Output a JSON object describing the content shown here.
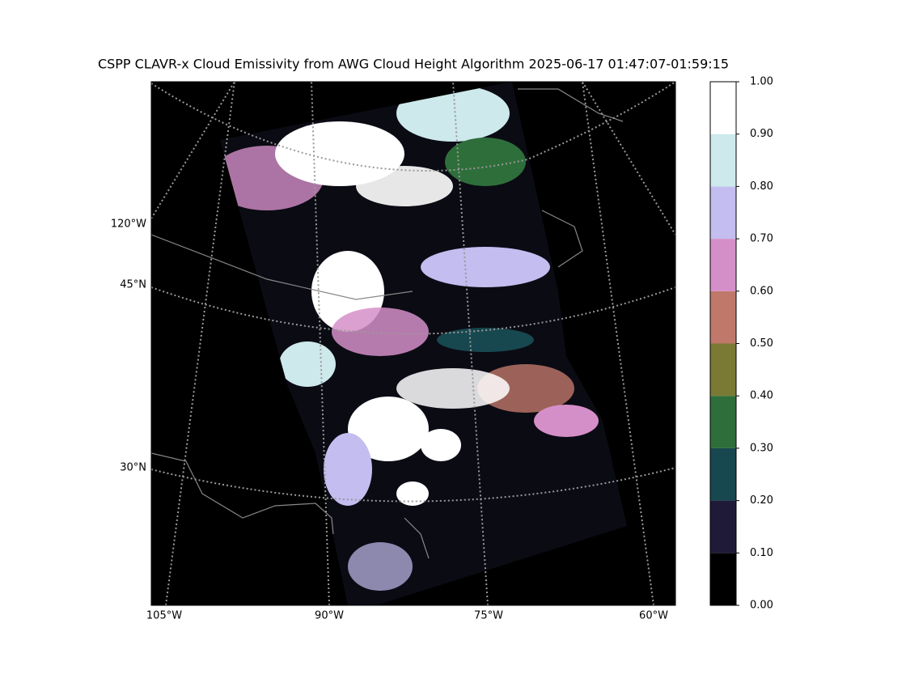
{
  "title": "CSPP CLAVR-x Cloud Emissivity from AWG Cloud Height Algorithm 2025-06-17 01:47:07-01:59:15",
  "map": {
    "lat_labels": [
      "120°W",
      "45°N",
      "30°N"
    ],
    "lon_labels": [
      "105°W",
      "90°W",
      "75°W",
      "60°W"
    ]
  },
  "colorbar": {
    "ticks": [
      {
        "value": 0,
        "label": "0.00"
      },
      {
        "value": 0.1,
        "label": "0.10"
      },
      {
        "value": 0.2,
        "label": "0.20"
      },
      {
        "value": 0.3,
        "label": "0.30"
      },
      {
        "value": 0.4,
        "label": "0.40"
      },
      {
        "value": 0.5,
        "label": "0.50"
      },
      {
        "value": 0.6,
        "label": "0.60"
      },
      {
        "value": 0.7,
        "label": "0.70"
      },
      {
        "value": 0.8,
        "label": "0.80"
      },
      {
        "value": 0.9,
        "label": "0.90"
      },
      {
        "value": 1,
        "label": "1.00"
      }
    ],
    "colors": [
      "#000000",
      "#1e1a38",
      "#17474f",
      "#2e6e3a",
      "#7a7a34",
      "#c0786a",
      "#d58fc8",
      "#c3bdf0",
      "#cde9ec",
      "#ffffff"
    ]
  }
}
